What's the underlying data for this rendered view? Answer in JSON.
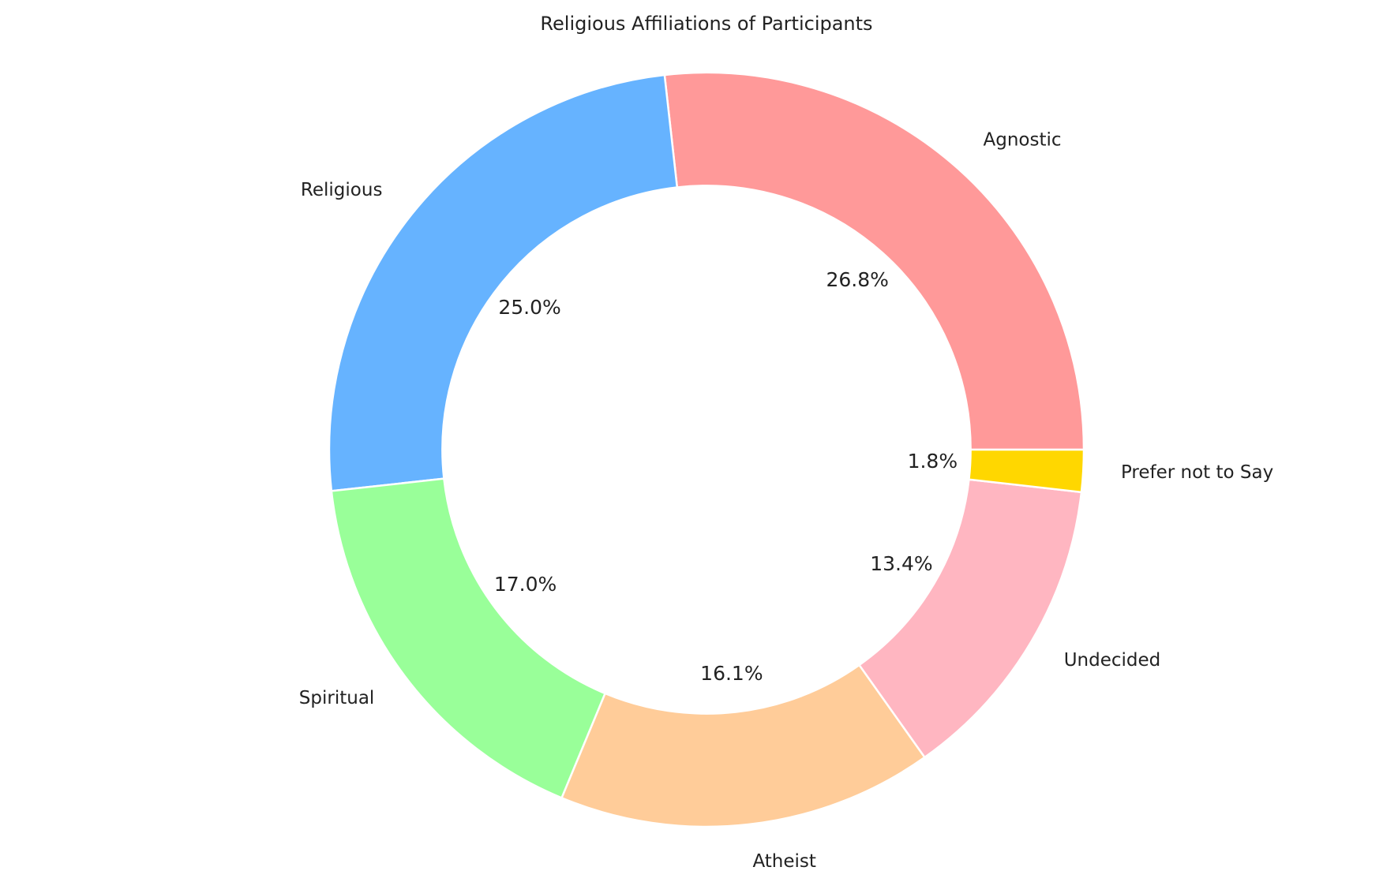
{
  "chart_data": {
    "type": "pie",
    "style": "donut",
    "title": "Religious Affiliations of Participants",
    "start_angle_deg": 0,
    "direction": "counterclockwise",
    "inner_radius_ratio": 0.7,
    "slices": [
      {
        "label": "Agnostic",
        "value": 26.8,
        "pct_label": "26.8%",
        "color": "#FF9999"
      },
      {
        "label": "Religious",
        "value": 25.0,
        "pct_label": "25.0%",
        "color": "#66B3FF"
      },
      {
        "label": "Spiritual",
        "value": 17.0,
        "pct_label": "17.0%",
        "color": "#99FF99"
      },
      {
        "label": "Atheist",
        "value": 16.1,
        "pct_label": "16.1%",
        "color": "#FFCC99"
      },
      {
        "label": "Undecided",
        "value": 13.4,
        "pct_label": "13.4%",
        "color": "#FFB6C1"
      },
      {
        "label": "Prefer not to Say",
        "value": 1.8,
        "pct_label": "1.8%",
        "color": "#FFD700"
      }
    ]
  }
}
